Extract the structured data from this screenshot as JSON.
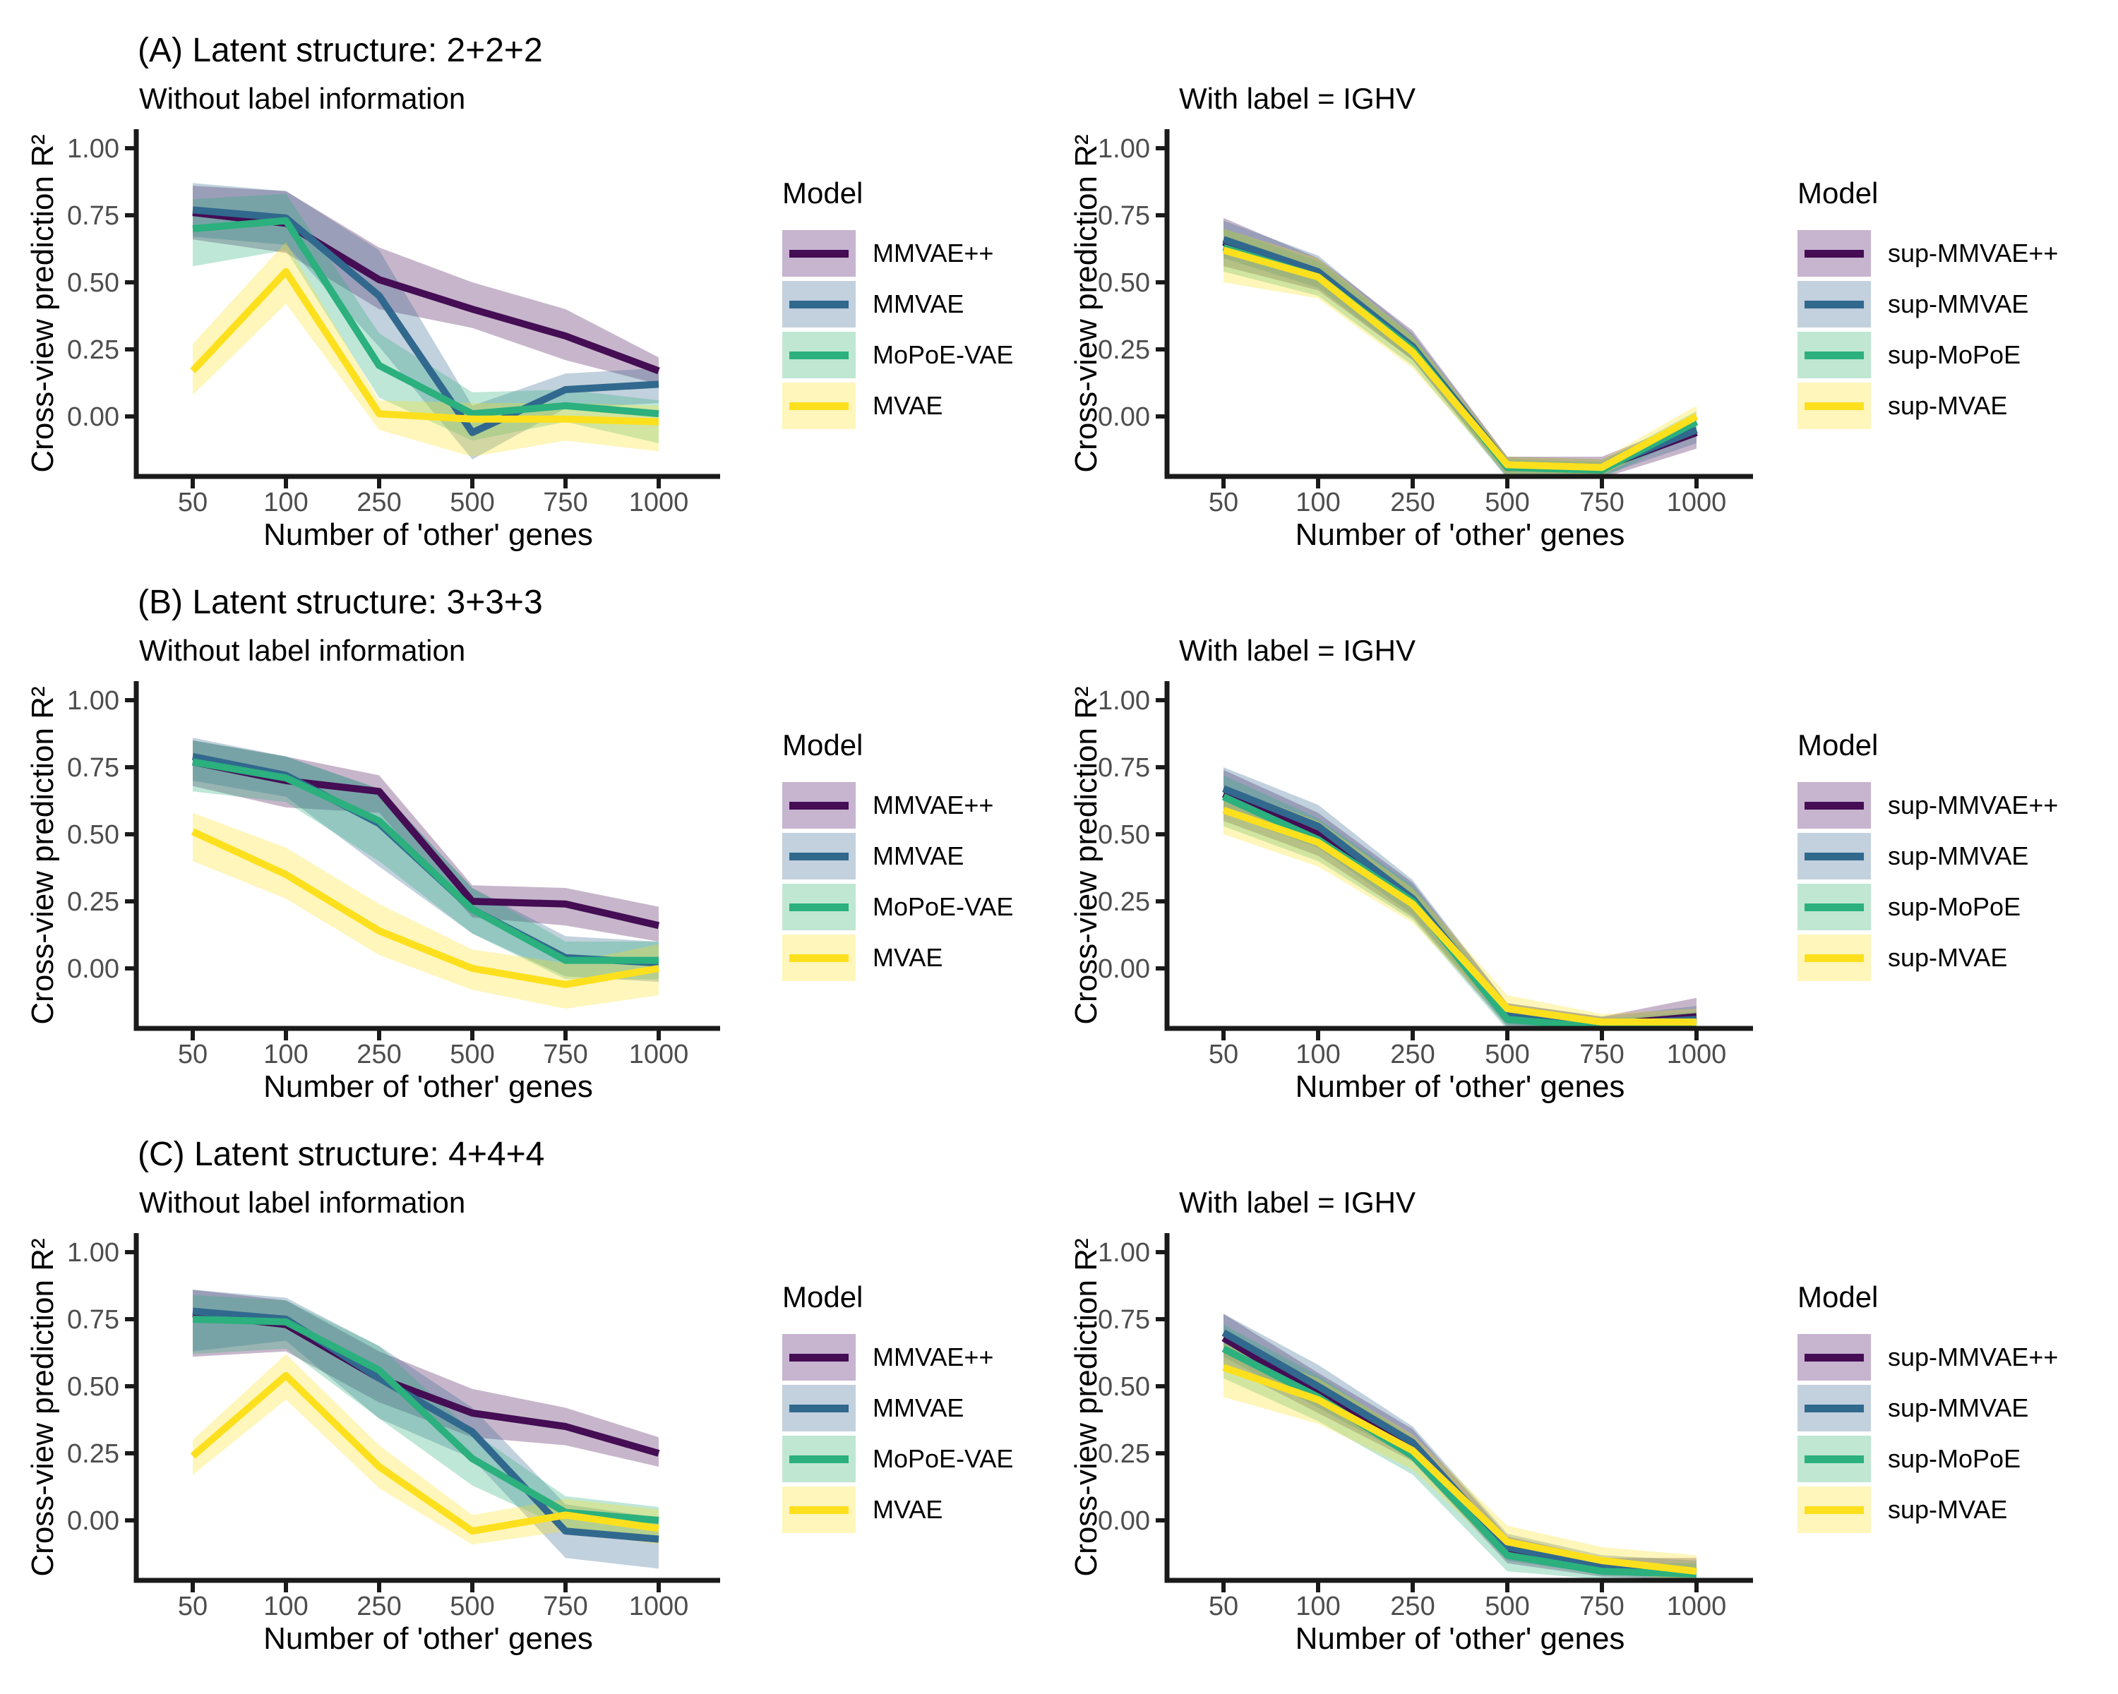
{
  "figure": {
    "background": "#FFFFFF",
    "axis_color": "#1A1A1A",
    "tick_label_color": "#4D4D4D",
    "ribbon_opacity": 0.3
  },
  "chart_data": [
    {
      "id": "panel_A_left",
      "type": "line",
      "side": "left",
      "panel_title": "(A) Latent structure: 2+2+2",
      "subtitle": "Without label information",
      "xlabel": "Number of 'other' genes",
      "ylabel": "Cross-view prediction R²",
      "legend_title": "Model",
      "x_categories": [
        50,
        100,
        250,
        500,
        750,
        1000
      ],
      "x_tick_labels": [
        "50",
        "100",
        "250",
        "500",
        "750",
        "1000"
      ],
      "y_tick_values": [
        1.0,
        0.75,
        0.5,
        0.25,
        0.0
      ],
      "y_tick_labels": [
        "1.00",
        "0.75",
        "0.50",
        "0.25",
        "0.00"
      ],
      "ylim": [
        -0.224,
        1.063
      ],
      "series": [
        {
          "name": "MMVAE++",
          "color": "#440D54",
          "swatch": "#C7B4CF",
          "values": [
            0.76,
            0.72,
            0.51,
            0.4,
            0.3,
            0.17
          ],
          "lower": [
            0.66,
            0.61,
            0.4,
            0.33,
            0.21,
            0.12
          ],
          "upper": [
            0.86,
            0.84,
            0.63,
            0.5,
            0.4,
            0.22
          ]
        },
        {
          "name": "MMVAE",
          "color": "#31688E",
          "swatch": "#C2D1DD",
          "values": [
            0.77,
            0.74,
            0.45,
            -0.06,
            0.1,
            0.12
          ],
          "lower": [
            0.67,
            0.64,
            0.26,
            -0.16,
            0.03,
            0.05
          ],
          "upper": [
            0.87,
            0.84,
            0.62,
            0.04,
            0.16,
            0.18
          ]
        },
        {
          "name": "MoPoE-VAE",
          "color": "#2BB07E",
          "swatch": "#C0E7D2",
          "values": [
            0.7,
            0.73,
            0.19,
            0.01,
            0.04,
            0.01
          ],
          "lower": [
            0.56,
            0.62,
            0.07,
            -0.09,
            -0.02,
            -0.1
          ],
          "upper": [
            0.81,
            0.83,
            0.31,
            0.09,
            0.1,
            0.06
          ]
        },
        {
          "name": "MVAE",
          "color": "#FDE01D",
          "swatch": "#FEF6BB",
          "values": [
            0.17,
            0.54,
            0.01,
            -0.01,
            -0.01,
            -0.02
          ],
          "lower": [
            0.08,
            0.42,
            -0.05,
            -0.15,
            -0.09,
            -0.13
          ],
          "upper": [
            0.27,
            0.65,
            0.06,
            0.05,
            0.05,
            0.04
          ]
        }
      ]
    },
    {
      "id": "panel_A_right",
      "type": "line",
      "side": "right",
      "subtitle": "With label = IGHV",
      "xlabel": "Number of 'other' genes",
      "ylabel": "Cross-view prediction R²",
      "legend_title": "Model",
      "x_categories": [
        50,
        100,
        250,
        500,
        750,
        1000
      ],
      "x_tick_labels": [
        "50",
        "100",
        "250",
        "500",
        "750",
        "1000"
      ],
      "y_tick_values": [
        1.0,
        0.75,
        0.5,
        0.25,
        0.0
      ],
      "y_tick_labels": [
        "1.00",
        "0.75",
        "0.50",
        "0.25",
        "0.00"
      ],
      "ylim": [
        -0.224,
        1.063
      ],
      "series": [
        {
          "name": "sup-MMVAE++",
          "color": "#440D54",
          "swatch": "#C7B4CF",
          "values": [
            0.65,
            0.53,
            0.26,
            -0.19,
            -0.19,
            -0.06
          ],
          "lower": [
            0.56,
            0.47,
            0.21,
            -0.23,
            -0.23,
            -0.12
          ],
          "upper": [
            0.74,
            0.59,
            0.32,
            -0.15,
            -0.15,
            -0.01
          ]
        },
        {
          "name": "sup-MMVAE",
          "color": "#31688E",
          "swatch": "#C2D1DD",
          "values": [
            0.66,
            0.54,
            0.26,
            -0.18,
            -0.19,
            -0.05
          ],
          "lower": [
            0.59,
            0.48,
            0.21,
            -0.22,
            -0.22,
            -0.1
          ],
          "upper": [
            0.73,
            0.6,
            0.31,
            -0.15,
            -0.16,
            -0.01
          ]
        },
        {
          "name": "sup-MoPoE",
          "color": "#2BB07E",
          "swatch": "#C0E7D2",
          "values": [
            0.63,
            0.52,
            0.25,
            -0.19,
            -0.2,
            -0.02
          ],
          "lower": [
            0.54,
            0.45,
            0.19,
            -0.23,
            -0.23,
            -0.06
          ],
          "upper": [
            0.7,
            0.58,
            0.3,
            -0.16,
            -0.17,
            0.02
          ]
        },
        {
          "name": "sup-MVAE",
          "color": "#FDE01D",
          "swatch": "#FEF6BB",
          "values": [
            0.62,
            0.52,
            0.24,
            -0.18,
            -0.19,
            0.0
          ],
          "lower": [
            0.5,
            0.44,
            0.18,
            -0.22,
            -0.22,
            -0.04
          ],
          "upper": [
            0.7,
            0.59,
            0.3,
            -0.15,
            -0.16,
            0.04
          ]
        }
      ]
    },
    {
      "id": "panel_B_left",
      "type": "line",
      "side": "left",
      "panel_title": "(B) Latent structure: 3+3+3",
      "subtitle": "Without label information",
      "xlabel": "Number of 'other' genes",
      "ylabel": "Cross-view prediction R²",
      "legend_title": "Model",
      "x_categories": [
        50,
        100,
        250,
        500,
        750,
        1000
      ],
      "x_tick_labels": [
        "50",
        "100",
        "250",
        "500",
        "750",
        "1000"
      ],
      "y_tick_values": [
        1.0,
        0.75,
        0.5,
        0.25,
        0.0
      ],
      "y_tick_labels": [
        "1.00",
        "0.75",
        "0.50",
        "0.25",
        "0.00"
      ],
      "ylim": [
        -0.224,
        1.063
      ],
      "series": [
        {
          "name": "MMVAE++",
          "color": "#440D54",
          "swatch": "#C7B4CF",
          "values": [
            0.77,
            0.7,
            0.66,
            0.25,
            0.24,
            0.16
          ],
          "lower": [
            0.68,
            0.6,
            0.58,
            0.19,
            0.16,
            0.1
          ],
          "upper": [
            0.85,
            0.79,
            0.72,
            0.31,
            0.3,
            0.23
          ]
        },
        {
          "name": "MMVAE",
          "color": "#31688E",
          "swatch": "#C2D1DD",
          "values": [
            0.79,
            0.72,
            0.54,
            0.22,
            0.04,
            0.02
          ],
          "lower": [
            0.7,
            0.64,
            0.38,
            0.13,
            -0.03,
            -0.05
          ],
          "upper": [
            0.86,
            0.79,
            0.67,
            0.3,
            0.12,
            0.1
          ]
        },
        {
          "name": "MoPoE-VAE",
          "color": "#2BB07E",
          "swatch": "#C0E7D2",
          "values": [
            0.77,
            0.71,
            0.55,
            0.22,
            0.03,
            0.03
          ],
          "lower": [
            0.66,
            0.62,
            0.4,
            0.13,
            -0.04,
            -0.04
          ],
          "upper": [
            0.85,
            0.79,
            0.67,
            0.3,
            0.1,
            0.1
          ]
        },
        {
          "name": "MVAE",
          "color": "#FDE01D",
          "swatch": "#FEF6BB",
          "values": [
            0.51,
            0.35,
            0.14,
            0.0,
            -0.06,
            0.0
          ],
          "lower": [
            0.4,
            0.26,
            0.05,
            -0.08,
            -0.15,
            -0.1
          ],
          "upper": [
            0.58,
            0.45,
            0.24,
            0.07,
            0.02,
            0.09
          ]
        }
      ]
    },
    {
      "id": "panel_B_right",
      "type": "line",
      "side": "right",
      "subtitle": "With label = IGHV",
      "xlabel": "Number of 'other' genes",
      "ylabel": "Cross-view prediction R²",
      "legend_title": "Model",
      "x_categories": [
        50,
        100,
        250,
        500,
        750,
        1000
      ],
      "x_tick_labels": [
        "50",
        "100",
        "250",
        "500",
        "750",
        "1000"
      ],
      "y_tick_values": [
        1.0,
        0.75,
        0.5,
        0.25,
        0.0
      ],
      "y_tick_labels": [
        "1.00",
        "0.75",
        "0.50",
        "0.25",
        "0.00"
      ],
      "ylim": [
        -0.224,
        1.063
      ],
      "series": [
        {
          "name": "sup-MMVAE++",
          "color": "#440D54",
          "swatch": "#C7B4CF",
          "values": [
            0.65,
            0.5,
            0.25,
            -0.18,
            -0.21,
            -0.18
          ],
          "lower": [
            0.55,
            0.42,
            0.19,
            -0.22,
            -0.23,
            -0.22
          ],
          "upper": [
            0.74,
            0.58,
            0.32,
            -0.13,
            -0.18,
            -0.11
          ]
        },
        {
          "name": "sup-MMVAE",
          "color": "#31688E",
          "swatch": "#C2D1DD",
          "values": [
            0.67,
            0.53,
            0.26,
            -0.17,
            -0.21,
            -0.19
          ],
          "lower": [
            0.58,
            0.45,
            0.2,
            -0.21,
            -0.23,
            -0.22
          ],
          "upper": [
            0.75,
            0.61,
            0.33,
            -0.13,
            -0.18,
            -0.14
          ]
        },
        {
          "name": "sup-MoPoE",
          "color": "#2BB07E",
          "swatch": "#C0E7D2",
          "values": [
            0.64,
            0.48,
            0.25,
            -0.19,
            -0.22,
            -0.2
          ],
          "lower": [
            0.53,
            0.4,
            0.18,
            -0.23,
            -0.24,
            -0.23
          ],
          "upper": [
            0.72,
            0.56,
            0.31,
            -0.15,
            -0.19,
            -0.16
          ]
        },
        {
          "name": "sup-MVAE",
          "color": "#FDE01D",
          "swatch": "#FEF6BB",
          "values": [
            0.59,
            0.47,
            0.24,
            -0.15,
            -0.2,
            -0.2
          ],
          "lower": [
            0.5,
            0.38,
            0.17,
            -0.2,
            -0.23,
            -0.23
          ],
          "upper": [
            0.68,
            0.55,
            0.3,
            -0.1,
            -0.17,
            -0.15
          ]
        }
      ]
    },
    {
      "id": "panel_C_left",
      "type": "line",
      "side": "left",
      "panel_title": "(C) Latent structure: 4+4+4",
      "subtitle": "Without label information",
      "xlabel": "Number of 'other' genes",
      "ylabel": "Cross-view prediction R²",
      "legend_title": "Model",
      "x_categories": [
        50,
        100,
        250,
        500,
        750,
        1000
      ],
      "x_tick_labels": [
        "50",
        "100",
        "250",
        "500",
        "750",
        "1000"
      ],
      "y_tick_values": [
        1.0,
        0.75,
        0.5,
        0.25,
        0.0
      ],
      "y_tick_labels": [
        "1.00",
        "0.75",
        "0.50",
        "0.25",
        "0.00"
      ],
      "ylim": [
        -0.224,
        1.063
      ],
      "series": [
        {
          "name": "MMVAE++",
          "color": "#440D54",
          "swatch": "#C7B4CF",
          "values": [
            0.77,
            0.73,
            0.53,
            0.4,
            0.35,
            0.25
          ],
          "lower": [
            0.61,
            0.63,
            0.44,
            0.31,
            0.28,
            0.2
          ],
          "upper": [
            0.86,
            0.82,
            0.63,
            0.49,
            0.42,
            0.31
          ]
        },
        {
          "name": "MMVAE",
          "color": "#31688E",
          "swatch": "#C2D1DD",
          "values": [
            0.78,
            0.75,
            0.53,
            0.33,
            -0.04,
            -0.07
          ],
          "lower": [
            0.63,
            0.67,
            0.38,
            0.23,
            -0.14,
            -0.18
          ],
          "upper": [
            0.86,
            0.83,
            0.65,
            0.42,
            0.06,
            0.01
          ]
        },
        {
          "name": "MoPoE-VAE",
          "color": "#2BB07E",
          "swatch": "#C0E7D2",
          "values": [
            0.75,
            0.74,
            0.56,
            0.23,
            0.03,
            0.0
          ],
          "lower": [
            0.62,
            0.64,
            0.38,
            0.13,
            -0.03,
            -0.06
          ],
          "upper": [
            0.84,
            0.82,
            0.65,
            0.33,
            0.09,
            0.05
          ]
        },
        {
          "name": "MVAE",
          "color": "#FDE01D",
          "swatch": "#FEF6BB",
          "values": [
            0.24,
            0.54,
            0.2,
            -0.04,
            0.02,
            -0.03
          ],
          "lower": [
            0.17,
            0.45,
            0.12,
            -0.09,
            -0.04,
            -0.09
          ],
          "upper": [
            0.3,
            0.62,
            0.28,
            0.02,
            0.08,
            0.04
          ]
        }
      ]
    },
    {
      "id": "panel_C_right",
      "type": "line",
      "side": "right",
      "subtitle": "With label = IGHV",
      "xlabel": "Number of 'other' genes",
      "ylabel": "Cross-view prediction R²",
      "legend_title": "Model",
      "x_categories": [
        50,
        100,
        250,
        500,
        750,
        1000
      ],
      "x_tick_labels": [
        "50",
        "100",
        "250",
        "500",
        "750",
        "1000"
      ],
      "y_tick_values": [
        1.0,
        0.75,
        0.5,
        0.25,
        0.0
      ],
      "y_tick_labels": [
        "1.00",
        "0.75",
        "0.50",
        "0.25",
        "0.00"
      ],
      "ylim": [
        -0.224,
        1.063
      ],
      "series": [
        {
          "name": "sup-MMVAE++",
          "color": "#440D54",
          "swatch": "#C7B4CF",
          "values": [
            0.68,
            0.47,
            0.28,
            -0.11,
            -0.18,
            -0.19
          ],
          "lower": [
            0.58,
            0.4,
            0.22,
            -0.16,
            -0.21,
            -0.22
          ],
          "upper": [
            0.77,
            0.55,
            0.34,
            -0.06,
            -0.14,
            -0.14
          ]
        },
        {
          "name": "sup-MMVAE",
          "color": "#31688E",
          "swatch": "#C2D1DD",
          "values": [
            0.7,
            0.5,
            0.29,
            -0.1,
            -0.17,
            -0.19
          ],
          "lower": [
            0.61,
            0.42,
            0.23,
            -0.15,
            -0.2,
            -0.22
          ],
          "upper": [
            0.77,
            0.58,
            0.35,
            -0.05,
            -0.13,
            -0.15
          ]
        },
        {
          "name": "sup-MoPoE",
          "color": "#2BB07E",
          "swatch": "#C0E7D2",
          "values": [
            0.64,
            0.46,
            0.24,
            -0.13,
            -0.19,
            -0.2
          ],
          "lower": [
            0.53,
            0.37,
            0.17,
            -0.19,
            -0.22,
            -0.23
          ],
          "upper": [
            0.73,
            0.54,
            0.31,
            -0.08,
            -0.16,
            -0.16
          ]
        },
        {
          "name": "sup-MVAE",
          "color": "#FDE01D",
          "swatch": "#FEF6BB",
          "values": [
            0.57,
            0.45,
            0.26,
            -0.08,
            -0.15,
            -0.19
          ],
          "lower": [
            0.46,
            0.36,
            0.19,
            -0.14,
            -0.19,
            -0.23
          ],
          "upper": [
            0.66,
            0.53,
            0.32,
            -0.02,
            -0.1,
            -0.13
          ]
        }
      ]
    }
  ]
}
